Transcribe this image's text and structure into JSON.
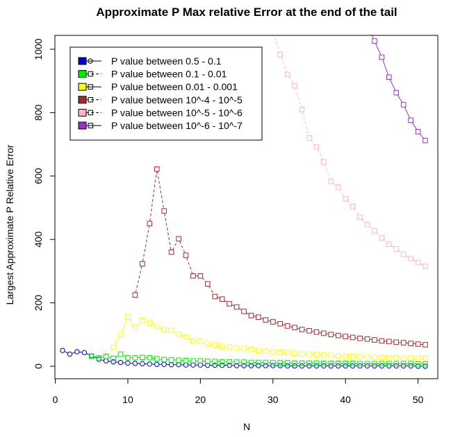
{
  "chart_data": {
    "type": "line",
    "title": "Approximate P Max relative Error at the end of the tail",
    "xlabel": "N",
    "ylabel": "Largest Approximate P Relative Error",
    "xlim": [
      1,
      51
    ],
    "ylim": [
      -40,
      1045
    ],
    "x_ticks": [
      0,
      10,
      20,
      30,
      40,
      50
    ],
    "y_ticks": [
      0,
      200,
      400,
      600,
      800,
      1000
    ],
    "x_tick_labels": [
      "0",
      "10",
      "20",
      "30",
      "40",
      "50"
    ],
    "y_tick_labels": [
      "0",
      "200",
      "400",
      "600",
      "800",
      "1000"
    ],
    "grid": false,
    "legend_position": "top-left",
    "series": [
      {
        "name": "P value between 0.5 - 0.1",
        "color": "#0000CD",
        "marker": "circle",
        "line": "solid",
        "x": [
          1,
          2,
          3,
          4,
          5,
          6,
          7,
          8,
          9,
          10,
          11,
          12,
          13,
          14,
          15,
          16,
          17,
          18,
          19,
          20,
          21,
          22,
          23,
          24,
          25,
          26,
          27,
          28,
          29,
          30,
          31,
          32,
          33,
          34,
          35,
          36,
          37,
          38,
          39,
          40,
          41,
          42,
          43,
          44,
          45,
          46,
          47,
          48,
          49,
          50,
          51
        ],
        "y": [
          50,
          38,
          46,
          43,
          33,
          22,
          17,
          14,
          12,
          10,
          9,
          8,
          7,
          6,
          6,
          5,
          5,
          4,
          4,
          4,
          3,
          3,
          3,
          3,
          2,
          2,
          2,
          2,
          2,
          2,
          2,
          1,
          1,
          1,
          1,
          1,
          1,
          1,
          1,
          1,
          1,
          1,
          1,
          1,
          1,
          1,
          1,
          1,
          1,
          0,
          0
        ]
      },
      {
        "name": "P value between 0.1 - 0.01",
        "color": "#00EE00",
        "marker": "square",
        "line": "dashed",
        "x": [
          5,
          6,
          7,
          8,
          9,
          10,
          11,
          12,
          13,
          14,
          15,
          16,
          17,
          18,
          19,
          20,
          21,
          22,
          23,
          24,
          25,
          26,
          27,
          28,
          29,
          30,
          31,
          32,
          33,
          34,
          35,
          36,
          37,
          38,
          39,
          40,
          41,
          42,
          43,
          44,
          45,
          46,
          47,
          48,
          49,
          50,
          51
        ],
        "y": [
          32,
          27,
          31,
          25,
          38,
          27,
          27,
          28,
          27,
          24,
          21,
          20,
          19,
          18,
          17,
          17,
          16,
          15,
          14,
          14,
          13,
          13,
          12,
          12,
          12,
          11,
          11,
          11,
          10,
          10,
          10,
          10,
          9,
          9,
          9,
          9,
          9,
          8,
          8,
          8,
          8,
          8,
          8,
          8,
          8,
          7,
          7
        ]
      },
      {
        "name": "P value between 0.01 - 0.001",
        "color": "#FFFF00",
        "marker": "square",
        "line": "solid",
        "x": [
          8,
          9,
          10,
          11,
          12,
          13,
          14,
          15,
          16,
          17,
          18,
          19,
          20,
          21,
          22,
          23,
          24,
          25,
          26,
          27,
          28,
          29,
          30,
          31,
          32,
          33,
          34,
          35,
          36,
          37,
          38,
          39,
          40,
          41,
          42,
          43,
          44,
          45,
          46,
          47,
          48,
          49,
          50,
          51
        ],
        "y": [
          60,
          100,
          157,
          122,
          145,
          137,
          126,
          116,
          113,
          100,
          92,
          80,
          79,
          72,
          67,
          63,
          60,
          58,
          56,
          53,
          50,
          48,
          46,
          44,
          43,
          41,
          39,
          38,
          37,
          35,
          34,
          33,
          32,
          31,
          30,
          30,
          29,
          28,
          27,
          27,
          26,
          26,
          25,
          25
        ]
      },
      {
        "name": "P value between 10^-4 - 10^-5",
        "color": "#A52A2A",
        "marker": "square",
        "line": "dashed",
        "x": [
          11,
          12,
          13,
          14,
          15,
          16,
          17,
          18,
          19,
          20,
          21,
          22,
          23,
          24,
          25,
          26,
          27,
          28,
          29,
          30,
          31,
          32,
          33,
          34,
          35,
          36,
          37,
          38,
          39,
          40,
          41,
          42,
          43,
          44,
          45,
          46,
          47,
          48,
          49,
          50,
          51
        ],
        "y": [
          225,
          323,
          450,
          622,
          490,
          360,
          402,
          350,
          285,
          285,
          260,
          220,
          212,
          197,
          187,
          173,
          160,
          155,
          146,
          140,
          134,
          127,
          122,
          116,
          112,
          108,
          104,
          100,
          97,
          94,
          91,
          88,
          86,
          83,
          80,
          78,
          76,
          74,
          72,
          70,
          68
        ]
      },
      {
        "name": "P value between 10^-5 - 10^-6",
        "color": "#FFB6C1",
        "marker": "square",
        "line": "dashed",
        "x": [
          30,
          31,
          32,
          33,
          34,
          35,
          36,
          37,
          38,
          39,
          40,
          41,
          42,
          43,
          44,
          45,
          46,
          47,
          48,
          49,
          50,
          51
        ],
        "y": [
          1060,
          983,
          920,
          885,
          810,
          720,
          692,
          645,
          583,
          565,
          528,
          504,
          470,
          447,
          427,
          405,
          385,
          370,
          353,
          340,
          327,
          315
        ]
      },
      {
        "name": "P value between 10^-6 - 10^-7",
        "color": "#9932CC",
        "marker": "square",
        "line": "solid",
        "x": [
          43,
          44,
          45,
          46,
          47,
          48,
          49,
          50,
          51
        ],
        "y": [
          1080,
          1026,
          975,
          912,
          863,
          825,
          776,
          740,
          712
        ]
      }
    ]
  }
}
